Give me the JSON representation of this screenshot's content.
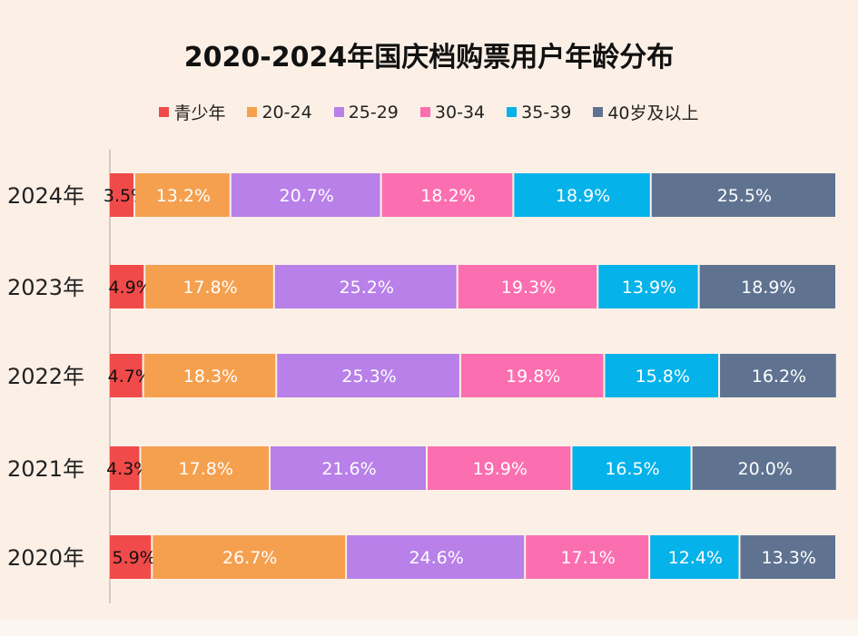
{
  "chart_data": {
    "type": "bar",
    "orientation": "horizontal",
    "stacked": true,
    "title": "2020-2024年国庆档购票用户年龄分布",
    "categories": [
      "2024年",
      "2023年",
      "2022年",
      "2021年",
      "2020年"
    ],
    "series": [
      {
        "name": "青少年",
        "color": "#f04a4a",
        "values": [
          3.5,
          4.9,
          4.7,
          4.3,
          5.9
        ]
      },
      {
        "name": "20-24",
        "color": "#f5a04f",
        "values": [
          13.2,
          17.8,
          18.3,
          17.8,
          26.7
        ]
      },
      {
        "name": "25-29",
        "color": "#b880e8",
        "values": [
          20.7,
          25.2,
          25.3,
          21.6,
          24.6
        ]
      },
      {
        "name": "30-34",
        "color": "#fb6fb0",
        "values": [
          18.2,
          19.3,
          19.8,
          19.9,
          17.1
        ]
      },
      {
        "name": "35-39",
        "color": "#05b2ea",
        "values": [
          18.9,
          13.9,
          15.8,
          16.5,
          12.4
        ]
      },
      {
        "name": "40岁及以上",
        "color": "#5f7391",
        "values": [
          25.5,
          18.9,
          16.2,
          20.0,
          13.3
        ]
      }
    ],
    "unit": "%",
    "xlim": [
      0,
      100
    ],
    "legend": "top",
    "grid": false
  }
}
